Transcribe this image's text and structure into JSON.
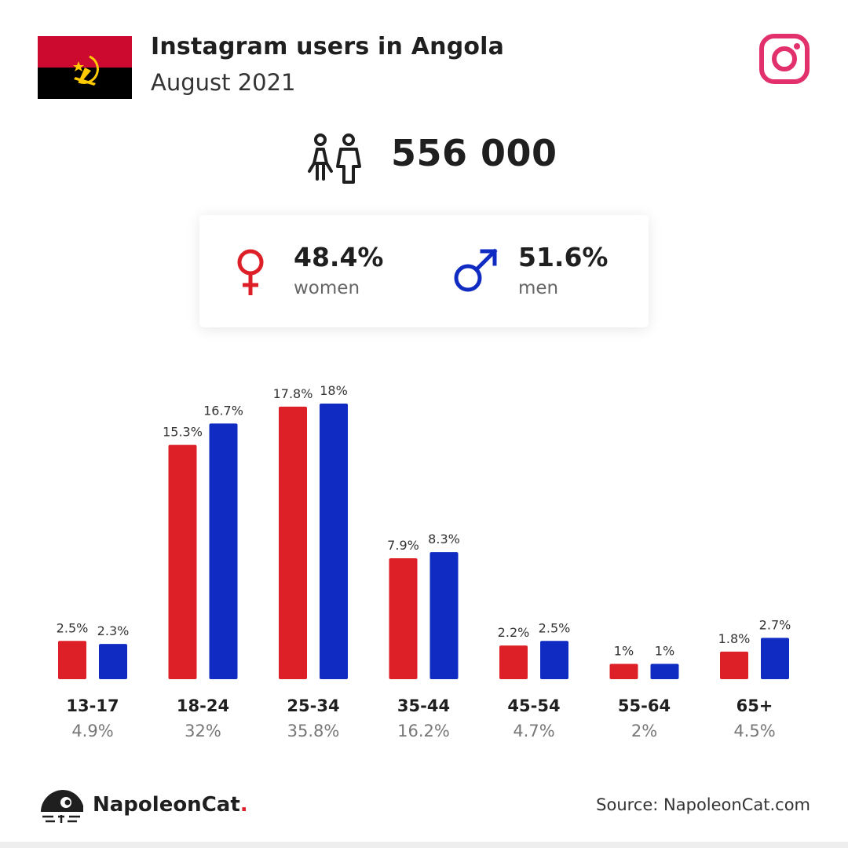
{
  "header": {
    "title": "Instagram users in Angola",
    "subtitle": "August 2021",
    "flag_colors": {
      "top": "#cc092f",
      "bottom": "#000000",
      "emblem": "#ffcb00"
    },
    "platform_icon": "instagram-icon",
    "platform_color": "#e1306c"
  },
  "total": {
    "icon": "people-icon",
    "value": "556 000"
  },
  "gender": {
    "women": {
      "icon": "female-symbol-icon",
      "percent": "48.4%",
      "label": "women",
      "color": "#dd2027"
    },
    "men": {
      "icon": "male-symbol-icon",
      "percent": "51.6%",
      "label": "men",
      "color": "#0f2bc2"
    }
  },
  "chart_data": {
    "type": "bar",
    "categories": [
      "13-17",
      "18-24",
      "25-34",
      "35-44",
      "45-54",
      "55-64",
      "65+"
    ],
    "category_totals": [
      "4.9%",
      "32%",
      "35.8%",
      "16.2%",
      "4.7%",
      "2%",
      "4.5%"
    ],
    "series": [
      {
        "color": "#dd2027",
        "values": [
          2.5,
          15.3,
          17.8,
          7.9,
          2.2,
          1,
          1.8
        ],
        "labels": [
          "2.5%",
          "15.3%",
          "17.8%",
          "7.9%",
          "2.2%",
          "1%",
          "1.8%"
        ]
      },
      {
        "color": "#0f2bc2",
        "values": [
          2.3,
          16.7,
          18,
          8.3,
          2.5,
          1,
          2.7
        ],
        "labels": [
          "2.3%",
          "16.7%",
          "18%",
          "8.3%",
          "2.5%",
          "1%",
          "2.7%"
        ]
      }
    ],
    "ylim": [
      0,
      18
    ],
    "grid": false,
    "legend": "none"
  },
  "footer": {
    "brand_icon": "napoleoncat-logo-icon",
    "brand_name": "NapoleonCat",
    "brand_dot": ".",
    "source": "Source: NapoleonCat.com"
  }
}
